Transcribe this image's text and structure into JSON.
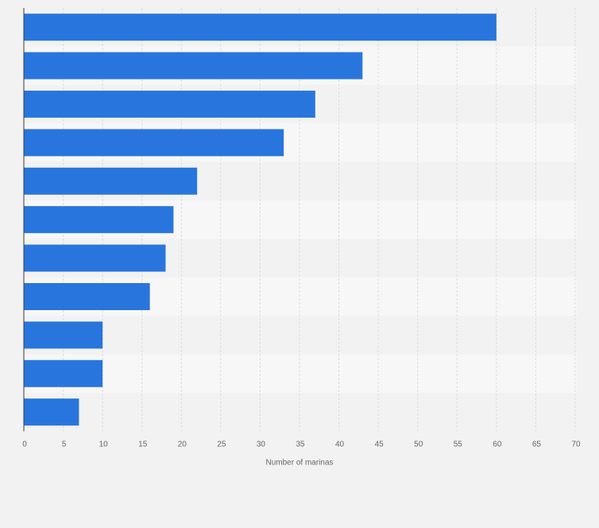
{
  "chart_data": {
    "type": "bar",
    "orientation": "horizontal",
    "categories": [
      "",
      "",
      "",
      "",
      "",
      "",
      "",
      "",
      "",
      "",
      ""
    ],
    "values": [
      60,
      43,
      37,
      33,
      22,
      19,
      18,
      16,
      10,
      10,
      7
    ],
    "title": "",
    "xlabel": "Number of marinas",
    "ylabel": "",
    "xlim": [
      0,
      70
    ],
    "xticks": [
      0,
      5,
      10,
      15,
      20,
      25,
      30,
      35,
      40,
      45,
      50,
      55,
      60,
      65,
      70
    ],
    "grid": true,
    "colors": {
      "bar": "#2876dd",
      "background": "#f2f2f2",
      "band_light": "#f7f7f7",
      "band_dark": "#f2f2f2",
      "gridline": "#dcdcdc",
      "axis": "#3a3a3a",
      "tick_text": "#666666"
    }
  }
}
